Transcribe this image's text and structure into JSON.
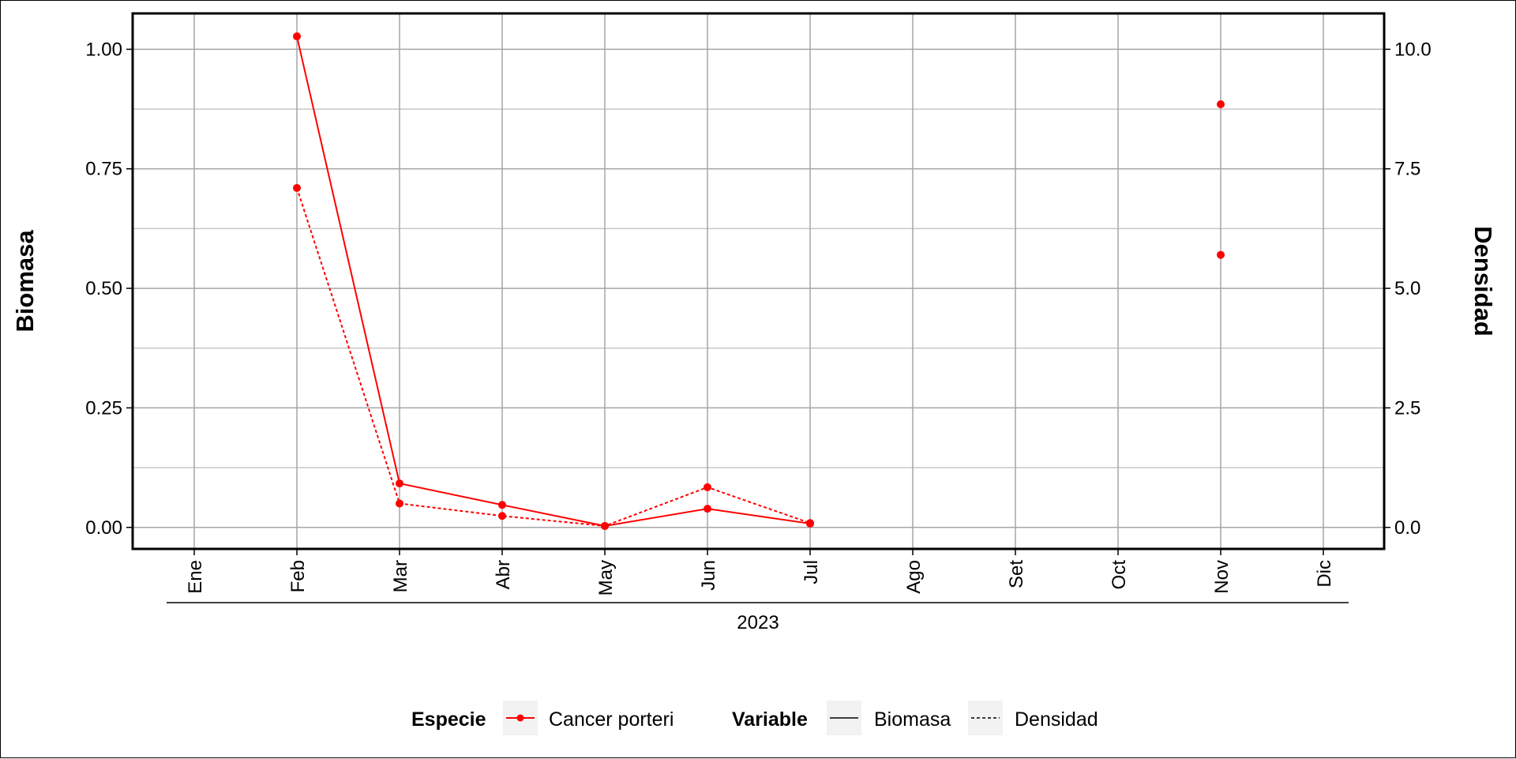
{
  "chart_data": {
    "type": "line",
    "categories": [
      "Ene",
      "Feb",
      "Mar",
      "Abr",
      "May",
      "Jun",
      "Jul",
      "Ago",
      "Set",
      "Oct",
      "Nov",
      "Dic"
    ],
    "year_label": "2023",
    "ylabel_left": "Biomasa",
    "ylabel_right": "Densidad",
    "ylim_left": [
      -0.045,
      1.075
    ],
    "ylim_right": [
      -0.45,
      10.75
    ],
    "yticks_left": [
      "0.00",
      "0.25",
      "0.50",
      "0.75",
      "1.00"
    ],
    "yticks_right": [
      "0.0",
      "2.5",
      "5.0",
      "7.5",
      "10.0"
    ],
    "grid": true,
    "legend_position": "bottom",
    "series": [
      {
        "name": "Biomasa",
        "species": "Cancer porteri",
        "axis": "left",
        "linetype": "solid",
        "color": "#ff0000",
        "values": [
          null,
          1.027,
          0.092,
          0.047,
          0.003,
          0.039,
          0.008,
          null,
          null,
          null,
          0.885,
          null
        ]
      },
      {
        "name": "Densidad",
        "species": "Cancer porteri",
        "axis": "right",
        "linetype": "dashed",
        "color": "#ff0000",
        "values": [
          null,
          7.1,
          0.5,
          0.24,
          0.03,
          0.84,
          0.09,
          null,
          null,
          null,
          5.7,
          null
        ]
      }
    ],
    "legend": {
      "species_title": "Especie",
      "species_items": [
        "Cancer porteri"
      ],
      "variable_title": "Variable",
      "variable_items": [
        "Biomasa",
        "Densidad"
      ]
    }
  }
}
